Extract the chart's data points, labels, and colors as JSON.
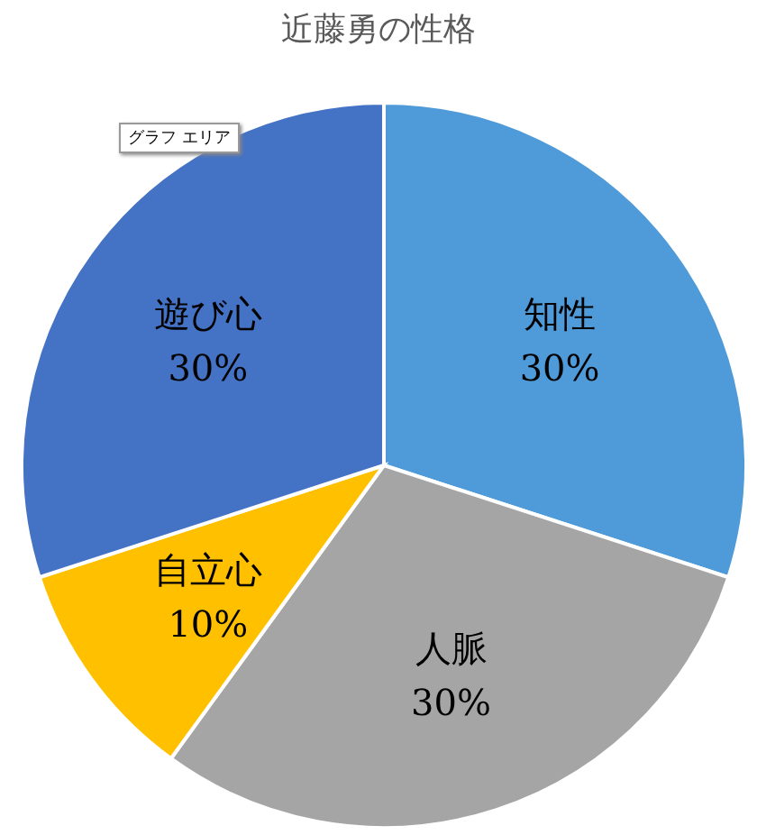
{
  "chart_data": {
    "type": "pie",
    "title": "近藤勇の性格",
    "categories": [
      "知性",
      "人脈",
      "自立心",
      "遊び心"
    ],
    "values": [
      30,
      30,
      10,
      30
    ],
    "value_labels": [
      "30%",
      "30%",
      "10%",
      "30%"
    ],
    "colors": [
      "#4f9ad8",
      "#a5a5a5",
      "#ffc000",
      "#4472c4"
    ],
    "annotations": [
      "グラフ エリア"
    ]
  }
}
